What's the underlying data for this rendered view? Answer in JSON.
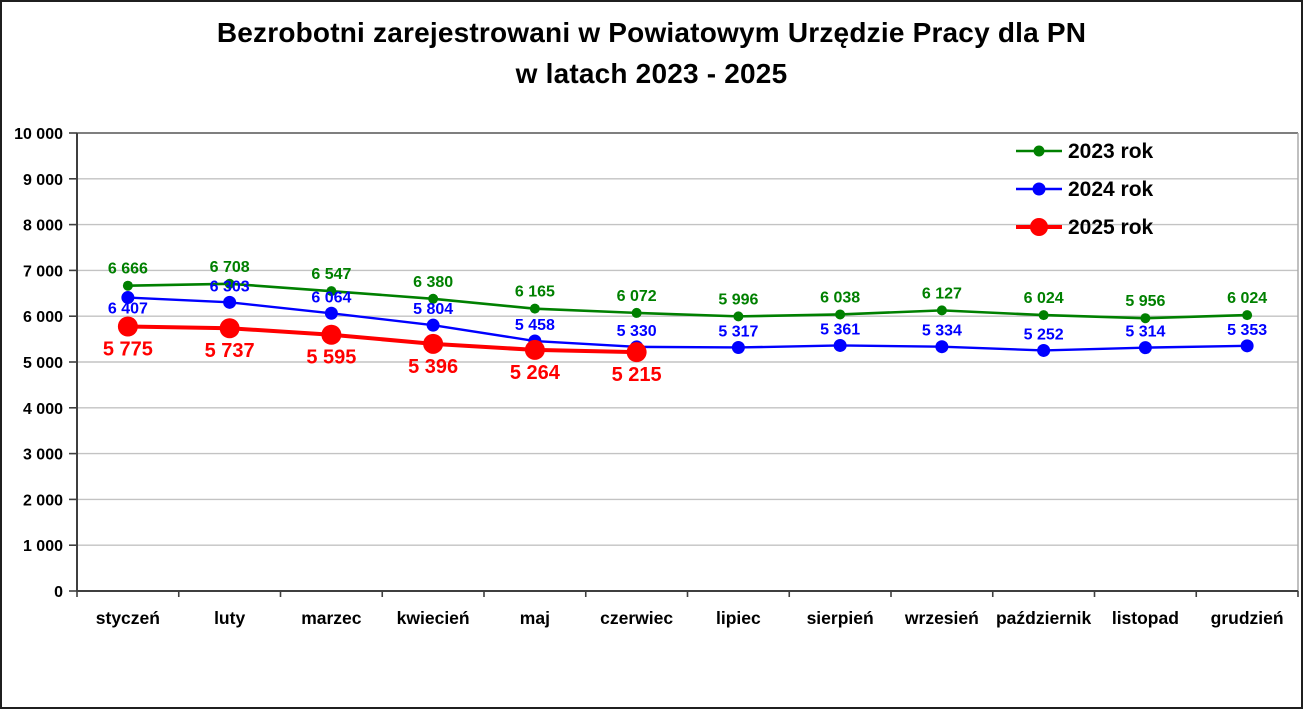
{
  "title": {
    "line1": "Bezrobotni zarejestrowani w Powiatowym Urzędzie Pracy dla PN",
    "line2": "w latach 2023 - 2025"
  },
  "chart_data": {
    "type": "line",
    "title": "Bezrobotni zarejestrowani w Powiatowym Urzędzie Pracy dla PN w latach 2023 - 2025",
    "categories": [
      "styczeń",
      "luty",
      "marzec",
      "kwiecień",
      "maj",
      "czerwiec",
      "lipiec",
      "sierpień",
      "wrzesień",
      "październik",
      "listopad",
      "grudzień"
    ],
    "series": [
      {
        "name": "2023 rok",
        "color": "#008000",
        "values": [
          6666,
          6708,
          6547,
          6380,
          6165,
          6072,
          5996,
          6038,
          6127,
          6024,
          5956,
          6024
        ]
      },
      {
        "name": "2024 rok",
        "color": "#0000ff",
        "values": [
          6407,
          6303,
          6064,
          5804,
          5458,
          5330,
          5317,
          5361,
          5334,
          5252,
          5314,
          5353
        ]
      },
      {
        "name": "2025 rok",
        "color": "#ff0000",
        "values": [
          5775,
          5737,
          5595,
          5396,
          5264,
          5215,
          null,
          null,
          null,
          null,
          null,
          null
        ]
      }
    ],
    "ylim": [
      0,
      10000
    ],
    "ytick_step": 1000,
    "ytick_labels": [
      "0",
      "1 000",
      "2 000",
      "3 000",
      "4 000",
      "5 000",
      "6 000",
      "7 000",
      "8 000",
      "9 000",
      "10 000"
    ],
    "xlabel": "",
    "ylabel": "",
    "grid": true,
    "data_labels": true,
    "legend_position": "top-right",
    "legend_entries": [
      "2023 rok",
      "2024 rok",
      "2025 rok"
    ]
  },
  "colors": {
    "background": "#ffffff",
    "frame_border": "#1f1f1f",
    "gridline": "#c3c3c3",
    "plot_border_top": "#7f7f7f",
    "plot_border_right": "#a6a6a6",
    "axis": "#3f3f3f",
    "text": "#000000",
    "series_2023": "#008000",
    "series_2024": "#0000ff",
    "series_2025": "#ff0000"
  }
}
